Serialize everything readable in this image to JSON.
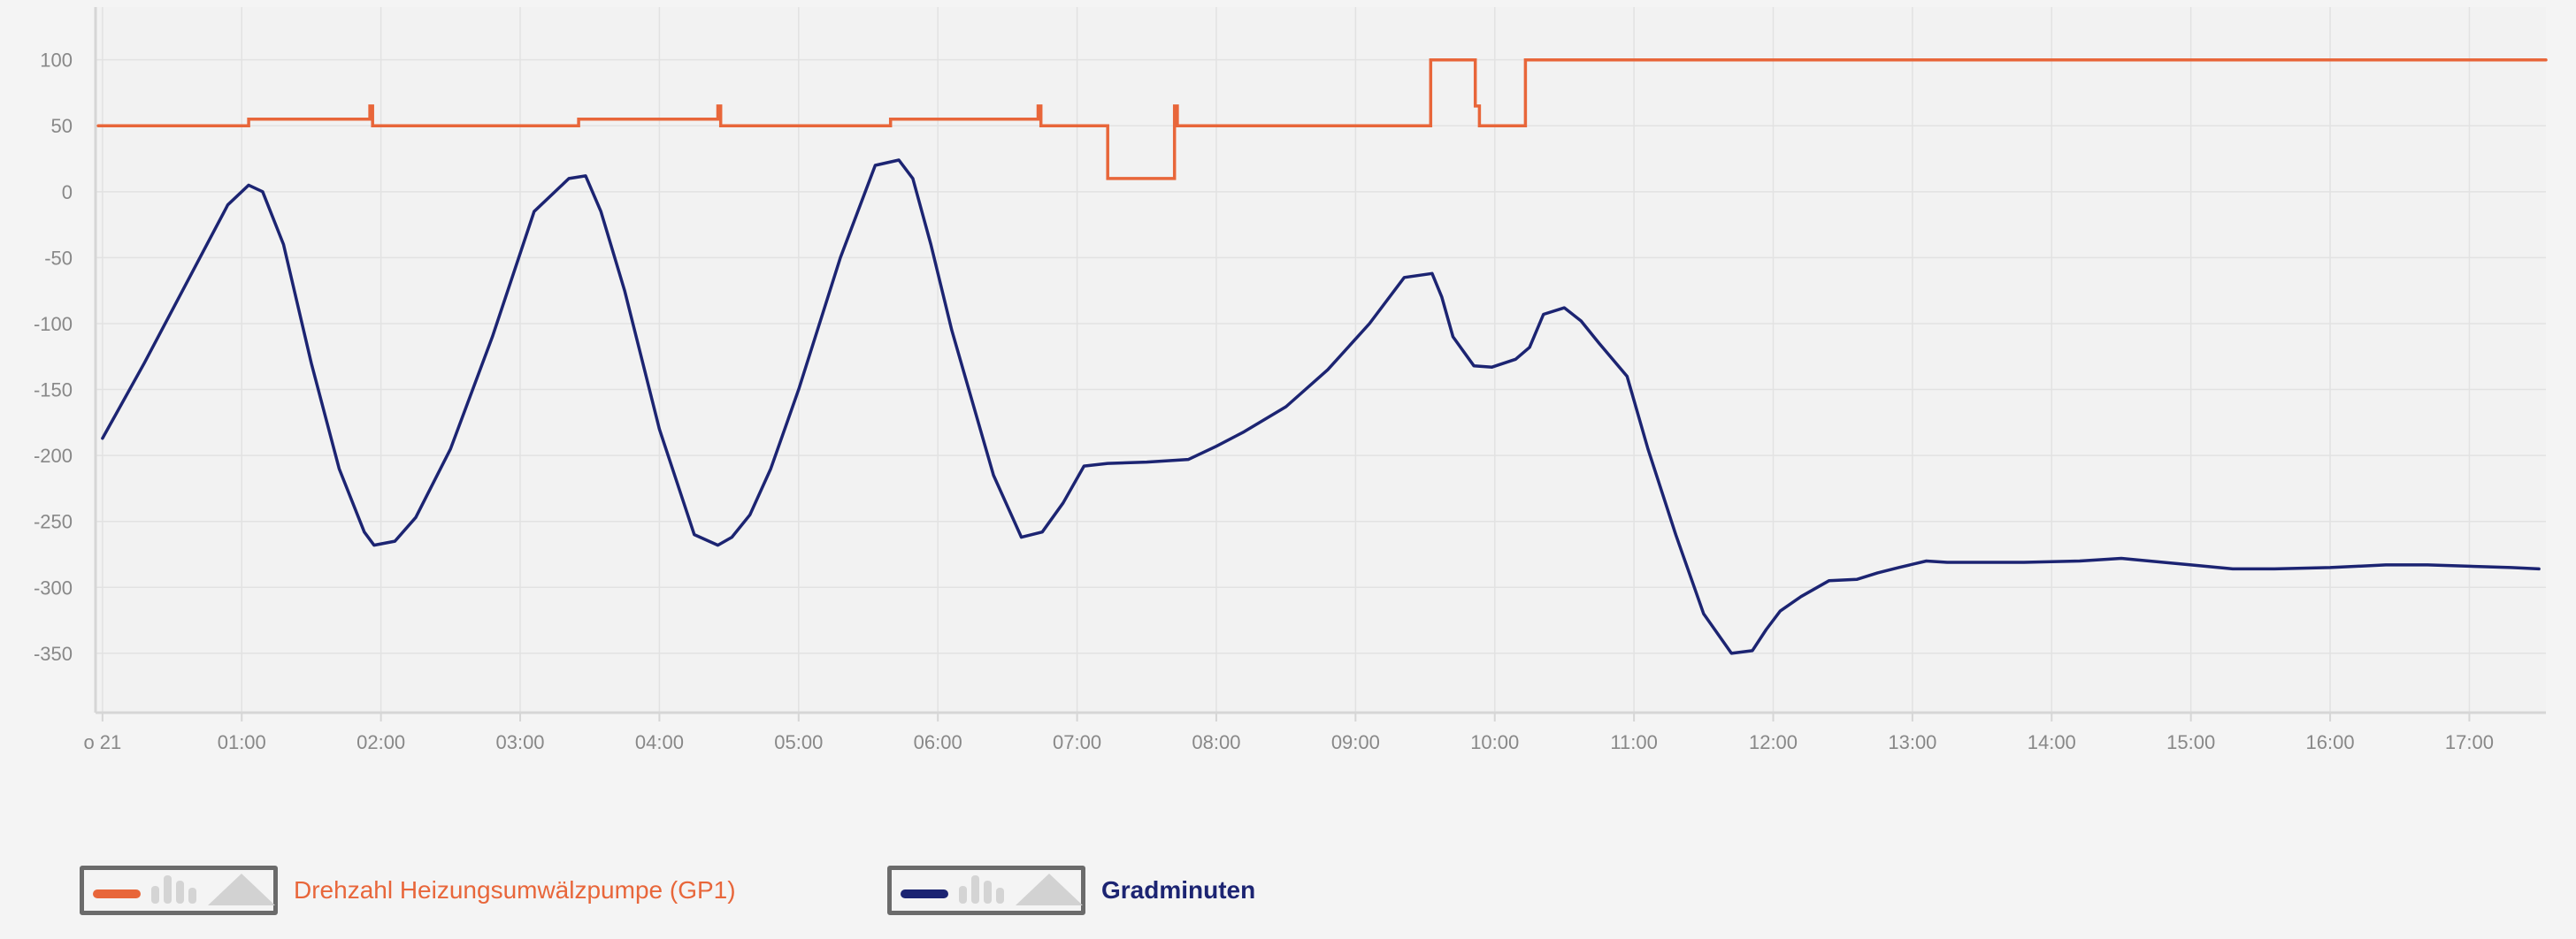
{
  "chart_data": {
    "type": "line",
    "title": "",
    "xlabel": "",
    "ylabel": "",
    "ylim": [
      -395,
      140
    ],
    "yticks": [
      100,
      50,
      0,
      -50,
      -100,
      -150,
      -200,
      -250,
      -300,
      -350
    ],
    "ytick_labels": [
      "100",
      "50",
      "0",
      "-50",
      "-100",
      "-150",
      "-200",
      "-250",
      "-300",
      "-350"
    ],
    "xlim": [
      -0.05,
      17.55
    ],
    "xticks": [
      0,
      1,
      2,
      3,
      4,
      5,
      6,
      7,
      8,
      9,
      10,
      11,
      12,
      13,
      14,
      15,
      16,
      17
    ],
    "xtick_labels": [
      "o 21",
      "01:00",
      "02:00",
      "03:00",
      "04:00",
      "05:00",
      "06:00",
      "07:00",
      "08:00",
      "09:00",
      "10:00",
      "11:00",
      "12:00",
      "13:00",
      "14:00",
      "15:00",
      "16:00",
      "17:00"
    ],
    "x_unit": "hours after midnight",
    "grid": true,
    "legend_position": "bottom-left",
    "series": [
      {
        "name": "Drehzahl Heizungsumwälzpumpe (GP1)",
        "color": "#e8663a",
        "step": true,
        "x": [
          -0.03,
          1.05,
          1.05,
          1.92,
          1.92,
          1.94,
          1.94,
          3.42,
          3.42,
          4.42,
          4.42,
          4.44,
          4.44,
          5.66,
          5.66,
          6.72,
          6.72,
          6.74,
          6.74,
          7.22,
          7.22,
          7.7,
          7.7,
          7.72,
          7.72,
          7.74,
          7.74,
          9.54,
          9.54,
          9.86,
          9.86,
          9.89,
          9.89,
          10.22,
          10.22,
          17.55
        ],
        "y": [
          50,
          50,
          55,
          55,
          65,
          65,
          50,
          50,
          55,
          55,
          65,
          65,
          50,
          50,
          55,
          55,
          65,
          65,
          50,
          50,
          10,
          10,
          65,
          65,
          50,
          50,
          50,
          50,
          100,
          100,
          65,
          65,
          50,
          50,
          100,
          100
        ]
      },
      {
        "name": "Gradminuten",
        "color": "#1c2472",
        "step": false,
        "x": [
          0.0,
          0.3,
          0.6,
          0.9,
          1.05,
          1.15,
          1.3,
          1.5,
          1.7,
          1.88,
          1.95,
          2.1,
          2.25,
          2.5,
          2.8,
          3.1,
          3.35,
          3.47,
          3.58,
          3.75,
          4.0,
          4.25,
          4.42,
          4.52,
          4.65,
          4.8,
          5.0,
          5.3,
          5.55,
          5.72,
          5.82,
          5.95,
          6.1,
          6.4,
          6.6,
          6.75,
          6.9,
          7.05,
          7.22,
          7.5,
          7.8,
          8.0,
          8.2,
          8.5,
          8.8,
          9.1,
          9.35,
          9.55,
          9.62,
          9.7,
          9.85,
          9.98,
          10.15,
          10.25,
          10.35,
          10.5,
          10.62,
          10.75,
          10.95,
          11.1,
          11.3,
          11.5,
          11.7,
          11.85,
          11.95,
          12.05,
          12.2,
          12.4,
          12.6,
          12.75,
          12.9,
          13.1,
          13.25,
          13.5,
          13.8,
          14.2,
          14.5,
          14.6,
          15.0,
          15.3,
          15.6,
          16.0,
          16.4,
          16.7,
          17.0,
          17.3,
          17.5
        ],
        "y": [
          -187,
          -130,
          -70,
          -10,
          5,
          0,
          -40,
          -130,
          -210,
          -258,
          -268,
          -265,
          -247,
          -195,
          -110,
          -15,
          10,
          12,
          -15,
          -75,
          -180,
          -260,
          -268,
          -262,
          -245,
          -210,
          -150,
          -50,
          20,
          24,
          10,
          -40,
          -105,
          -215,
          -262,
          -258,
          -236,
          -208,
          -206,
          -205,
          -203,
          -193,
          -182,
          -163,
          -135,
          -100,
          -65,
          -62,
          -80,
          -110,
          -132,
          -133,
          -127,
          -118,
          -93,
          -88,
          -98,
          -115,
          -140,
          -195,
          -260,
          -320,
          -350,
          -348,
          -332,
          -318,
          -307,
          -295,
          -294,
          -289,
          -285,
          -280,
          -281,
          -281,
          -281,
          -280,
          -278,
          -279,
          -283,
          -286,
          -286,
          -285,
          -283,
          -283,
          -284,
          -285,
          -286
        ]
      }
    ]
  },
  "legend": {
    "items": [
      {
        "label": "Drehzahl Heizungsumwälzpumpe (GP1)",
        "color": "#e8663a"
      },
      {
        "label": "Gradminuten",
        "color": "#1c2472"
      }
    ]
  }
}
